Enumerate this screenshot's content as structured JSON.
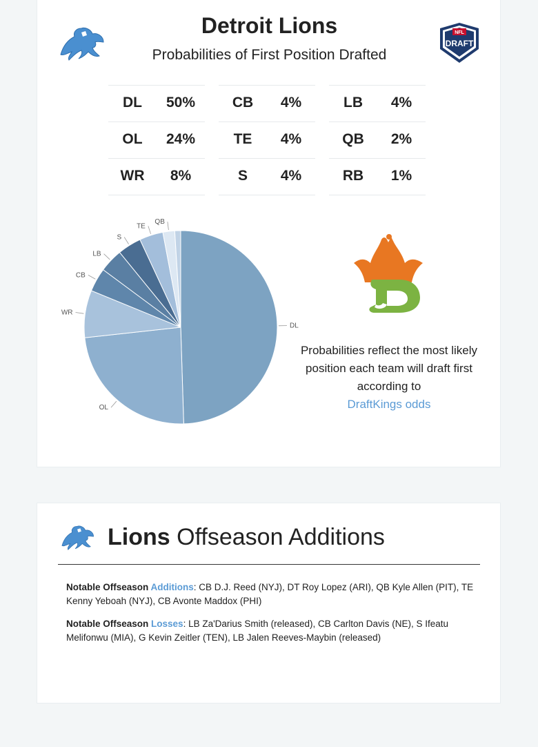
{
  "header": {
    "title": "Detroit Lions",
    "subtitle": "Probabilities of First Position Drafted",
    "draft_logo_text": "DRAFT",
    "nfl_badge_text": "NFL"
  },
  "probabilities": [
    [
      {
        "pos": "DL",
        "val": "50%"
      },
      {
        "pos": "OL",
        "val": "24%"
      },
      {
        "pos": "WR",
        "val": "8%"
      }
    ],
    [
      {
        "pos": "CB",
        "val": "4%"
      },
      {
        "pos": "TE",
        "val": "4%"
      },
      {
        "pos": "S",
        "val": "4%"
      }
    ],
    [
      {
        "pos": "LB",
        "val": "4%"
      },
      {
        "pos": "QB",
        "val": "2%"
      },
      {
        "pos": "RB",
        "val": "1%"
      }
    ]
  ],
  "chart_data": {
    "type": "pie",
    "labels": [
      "DL",
      "OL",
      "WR",
      "CB",
      "LB",
      "S",
      "TE",
      "QB",
      "RB"
    ],
    "values": [
      50,
      24,
      8,
      4,
      4,
      4,
      4,
      2,
      1
    ],
    "shown_labels": [
      "DL",
      "OL",
      "WR",
      "CB",
      "LB",
      "S",
      "TE",
      "QB",
      ""
    ],
    "colors": [
      "#7da3c2",
      "#8eb0cf",
      "#a8c2dc",
      "#5f86ab",
      "#5a7fa3",
      "#4a6d92",
      "#a3bedb",
      "#dde8f3",
      "#c1d3e6"
    ],
    "start_angle_deg": 0,
    "direction": "clockwise"
  },
  "side_note": {
    "text": "Probabilities reflect the most likely position each team will draft first according to",
    "link": "DraftKings odds"
  },
  "offseason": {
    "title_bold": "Lions",
    "title_rest": " Offseason Additions",
    "additions_prefix": "Notable Offseason ",
    "additions_word": "Additions",
    "additions_text": ": CB D.J. Reed (NYJ), DT Roy Lopez (ARI), QB Kyle Allen (PIT), TE Kenny Yeboah (NYJ), CB Avonte Maddox (PHI)",
    "losses_prefix": "Notable Offseason ",
    "losses_word": "Losses",
    "losses_text": ": LB Za'Darius Smith (released), CB Carlton Davis (NE), S Ifeatu Melifonwu (MIA), G Kevin Zeitler (TEN), LB Jalen Reeves-Maybin (released)"
  },
  "colors": {
    "accent_blue": "#5b9bd5",
    "lions_blue": "#4a8fd0",
    "draft_navy": "#1f3b6e",
    "draft_red": "#c8102e",
    "dk_orange": "#e87722",
    "dk_green": "#7cb342"
  }
}
